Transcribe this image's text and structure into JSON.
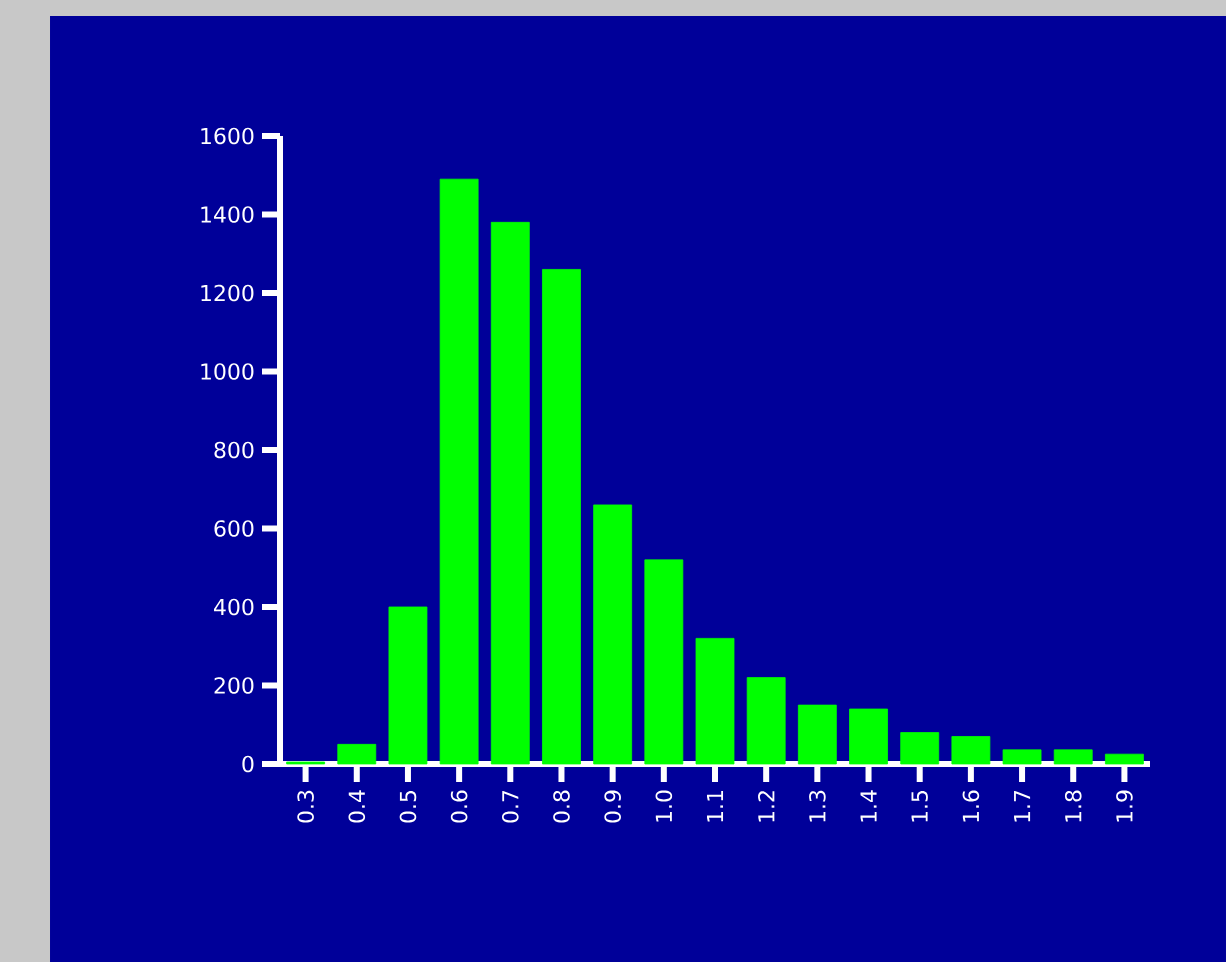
{
  "chart_data": {
    "type": "bar",
    "categories": [
      "0.3",
      "0.4",
      "0.5",
      "0.6",
      "0.7",
      "0.8",
      "0.9",
      "1.0",
      "1.1",
      "1.2",
      "1.3",
      "1.4",
      "1.5",
      "1.6",
      "1.7",
      "1.8",
      "1.9"
    ],
    "values": [
      5,
      50,
      400,
      1490,
      1380,
      1260,
      660,
      520,
      320,
      220,
      150,
      140,
      80,
      70,
      36,
      36,
      25
    ],
    "color": "#00ff00",
    "ylim": [
      0,
      1600
    ],
    "yticks": [
      0,
      200,
      400,
      600,
      800,
      1000,
      1200,
      1400,
      1600
    ]
  }
}
